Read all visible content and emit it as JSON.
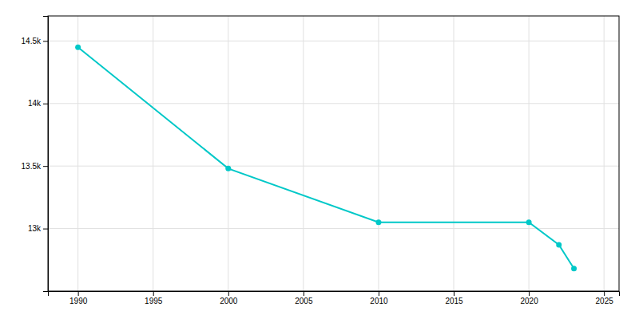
{
  "chart_data": {
    "type": "line",
    "x": [
      1990,
      2000,
      2010,
      2020,
      2022,
      2023
    ],
    "values": [
      14450,
      13480,
      13050,
      13050,
      12870,
      12680
    ],
    "color": "#00C8C8",
    "marker": "circle",
    "xlim": [
      1988,
      2026
    ],
    "ylim": [
      12500,
      14700
    ],
    "xticks": [
      1990,
      1995,
      2000,
      2005,
      2010,
      2015,
      2020,
      2025
    ],
    "yticks": [
      {
        "value": 13000,
        "label": "13k"
      },
      {
        "value": 13500,
        "label": "13.5k"
      },
      {
        "value": 14000,
        "label": "14k"
      },
      {
        "value": 14500,
        "label": "14.5k"
      }
    ],
    "grid": true
  }
}
